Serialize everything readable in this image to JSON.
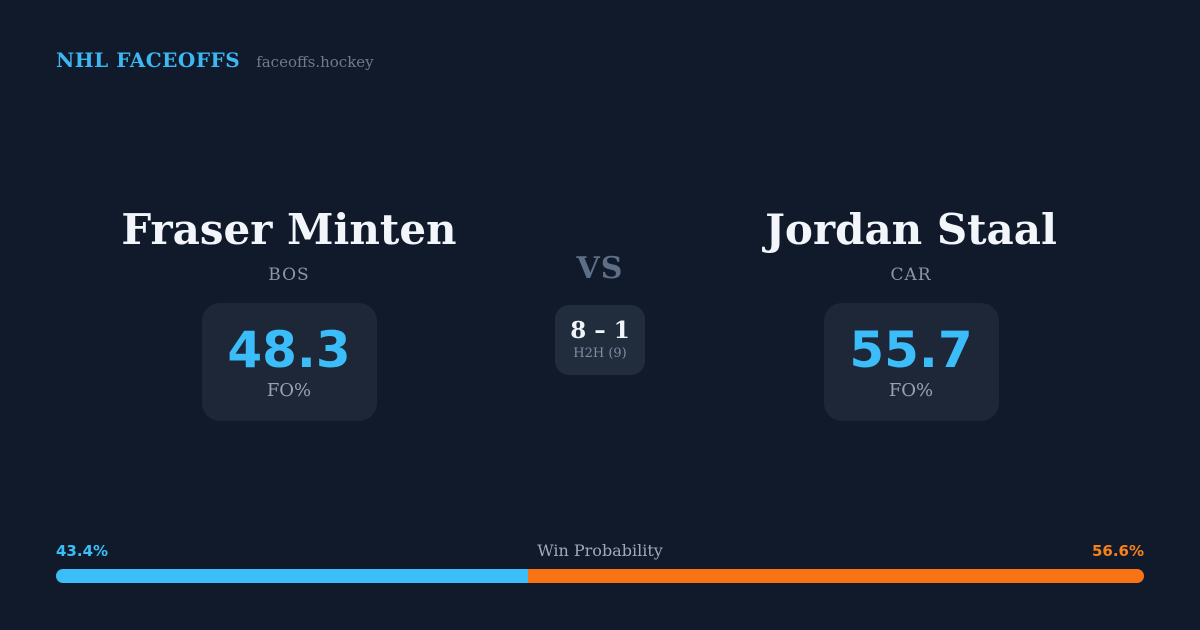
{
  "header": {
    "brand": "NHL FACEOFFS",
    "site": "faceoffs.hockey"
  },
  "matchup": {
    "vs_label": "VS",
    "h2h": {
      "score": "8 – 1",
      "label": "H2H (9)"
    },
    "players": [
      {
        "name": "Fraser Minten",
        "team": "BOS",
        "fo_pct": "48.3",
        "stat_label": "FO%"
      },
      {
        "name": "Jordan Staal",
        "team": "CAR",
        "fo_pct": "55.7",
        "stat_label": "FO%"
      }
    ]
  },
  "win_probability": {
    "label": "Win Probability",
    "left_pct": "43.4%",
    "right_pct": "56.6%",
    "left_value": 43.4,
    "right_value": 56.6
  },
  "chart_data": {
    "type": "bar",
    "title": "Win Probability",
    "categories": [
      "Fraser Minten (BOS)",
      "Jordan Staal (CAR)"
    ],
    "series": [
      {
        "name": "Win Probability %",
        "values": [
          43.4,
          56.6
        ]
      },
      {
        "name": "FO%",
        "values": [
          48.3,
          55.7
        ]
      },
      {
        "name": "H2H wins (of 9)",
        "values": [
          8,
          1
        ]
      }
    ],
    "unit": "%",
    "orientation": "horizontal-stacked",
    "xlim": [
      0,
      100
    ],
    "legend": "none",
    "colors": [
      "#3ABDF8",
      "#F97316"
    ]
  },
  "colors": {
    "background": "#111A2B",
    "card": "#1D2737",
    "accent_blue": "#3ABDF8",
    "accent_orange": "#F97316",
    "text_primary": "#F2F5FA",
    "text_muted": "#8B97A9"
  }
}
